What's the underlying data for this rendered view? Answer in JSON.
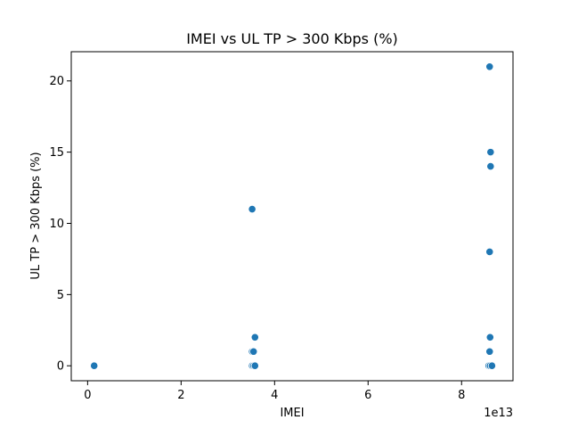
{
  "chart_data": {
    "type": "scatter",
    "title": "IMEI vs UL TP > 300 Kbps (%)",
    "xlabel": "IMEI",
    "ylabel": "UL TP > 300 Kbps (%)",
    "x_offset_label": "1e13",
    "xlim": [
      -0.35,
      9.1
    ],
    "ylim": [
      -1.05,
      22.05
    ],
    "xticks": [
      0,
      2,
      4,
      6,
      8
    ],
    "xtick_labels": [
      "0",
      "2",
      "4",
      "6",
      "8"
    ],
    "yticks": [
      0,
      5,
      10,
      15,
      20
    ],
    "ytick_labels": [
      "0",
      "5",
      "10",
      "15",
      "20"
    ],
    "grid": false,
    "point_color": "#1f77b4",
    "points": [
      {
        "x": 0.14,
        "y": 0
      },
      {
        "x": 3.52,
        "y": 11
      },
      {
        "x": 3.52,
        "y": 1
      },
      {
        "x": 3.55,
        "y": 1
      },
      {
        "x": 3.58,
        "y": 2
      },
      {
        "x": 3.52,
        "y": 0
      },
      {
        "x": 3.55,
        "y": 0
      },
      {
        "x": 3.58,
        "y": 0
      },
      {
        "x": 8.6,
        "y": 21
      },
      {
        "x": 8.62,
        "y": 15
      },
      {
        "x": 8.62,
        "y": 14
      },
      {
        "x": 8.6,
        "y": 8
      },
      {
        "x": 8.61,
        "y": 2
      },
      {
        "x": 8.6,
        "y": 1
      },
      {
        "x": 8.58,
        "y": 0
      },
      {
        "x": 8.61,
        "y": 0
      },
      {
        "x": 8.65,
        "y": 0
      }
    ]
  }
}
